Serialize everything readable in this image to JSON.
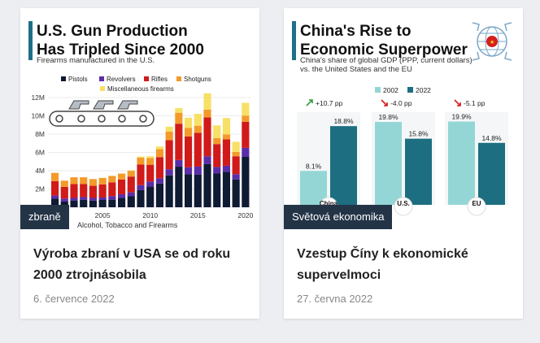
{
  "cards": [
    {
      "category": "zbraně",
      "title": "Výroba zbraní v USA se od roku 2000 ztrojnásobila",
      "date": "6. července 2022",
      "infographic": {
        "heading_line1": "U.S. Gun Production",
        "heading_line2": "Has Tripled Since 2000",
        "subtitle": "Firearms manufactured in the U.S.",
        "source_fragment": "Alcohol, Tobacco and Firearms",
        "accent_color": "#1e6f87",
        "chart_data": {
          "type": "bar",
          "stacked": true,
          "x": [
            2000,
            2001,
            2002,
            2003,
            2004,
            2005,
            2006,
            2007,
            2008,
            2009,
            2010,
            2011,
            2012,
            2013,
            2014,
            2015,
            2016,
            2017,
            2018,
            2019,
            2020
          ],
          "x_ticks": [
            "2005",
            "2010",
            "2015",
            "2020"
          ],
          "y_ticks": [
            "0",
            "2M",
            "4M",
            "6M",
            "8M",
            "10M",
            "12M"
          ],
          "ylim": [
            0,
            12000000
          ],
          "series": [
            {
              "name": "Pistols",
              "color": "#0f1a33",
              "values": [
                0.96,
                0.63,
                0.74,
                0.81,
                0.73,
                0.8,
                0.83,
                1.03,
                1.2,
                1.87,
                2.26,
                2.6,
                3.49,
                4.44,
                3.63,
                3.56,
                4.72,
                3.69,
                3.88,
                3.04,
                5.51
              ]
            },
            {
              "name": "Revolvers",
              "color": "#5a2ea6",
              "values": [
                0.32,
                0.32,
                0.28,
                0.31,
                0.29,
                0.27,
                0.39,
                0.39,
                0.43,
                0.55,
                0.56,
                0.57,
                0.67,
                0.73,
                0.74,
                0.89,
                0.86,
                0.72,
                0.66,
                0.58,
                0.99
              ]
            },
            {
              "name": "Rifles",
              "color": "#d11a1a",
              "values": [
                1.58,
                1.28,
                1.52,
                1.43,
                1.33,
                1.43,
                1.5,
                1.61,
                1.73,
                2.25,
                1.83,
                2.32,
                3.17,
                3.97,
                3.38,
                3.69,
                4.24,
                2.5,
                2.88,
                1.96,
                2.84
              ]
            },
            {
              "name": "Shotguns",
              "color": "#f39a2b",
              "values": [
                0.9,
                0.68,
                0.74,
                0.73,
                0.73,
                0.71,
                0.71,
                0.65,
                0.63,
                0.75,
                0.74,
                0.86,
                0.95,
                1.2,
                0.94,
                0.78,
                0.85,
                0.65,
                0.54,
                0.48,
                0.68
              ]
            },
            {
              "name": "Miscellaneous firearms",
              "color": "#f7e065",
              "values": [
                0.0,
                0.0,
                0.0,
                0.0,
                0.0,
                0.0,
                0.0,
                0.02,
                0.06,
                0.13,
                0.19,
                0.3,
                0.53,
                0.5,
                1.1,
                1.3,
                1.8,
                1.39,
                1.8,
                1.1,
                1.4
              ]
            }
          ],
          "units_note": "values in millions"
        }
      }
    },
    {
      "category": "Světová ekonomika",
      "title": "Vzestup Číny k ekonomické supervelmoci",
      "date": "27. června 2022",
      "infographic": {
        "heading_line1": "China's Rise to",
        "heading_line2": "Economic Superpower",
        "subtitle_line1": "China's share of global GDP (PPP, current dollars)",
        "subtitle_line2": "vs. the United States and the EU",
        "accent_color": "#1e6f87",
        "chart_data": {
          "type": "bar",
          "categories": [
            "China",
            "U.S.",
            "EU"
          ],
          "series": [
            {
              "name": "2002",
              "color": "#94d6d6",
              "values": [
                8.1,
                19.8,
                19.9
              ]
            },
            {
              "name": "2022",
              "color": "#1d6e80",
              "values": [
                18.8,
                15.8,
                14.8
              ]
            }
          ],
          "value_labels_2002": [
            "8.1%",
            "19.8%",
            "19.9%"
          ],
          "value_labels_2022": [
            "18.8%",
            "15.8%",
            "14.8%"
          ],
          "changes": [
            "+10.7 pp",
            "-4.0 pp",
            "-5.1 pp"
          ],
          "change_colors": [
            "#2e9e3a",
            "#d11a1a",
            "#d11a1a"
          ],
          "ylim": [
            0,
            25
          ]
        }
      }
    }
  ]
}
